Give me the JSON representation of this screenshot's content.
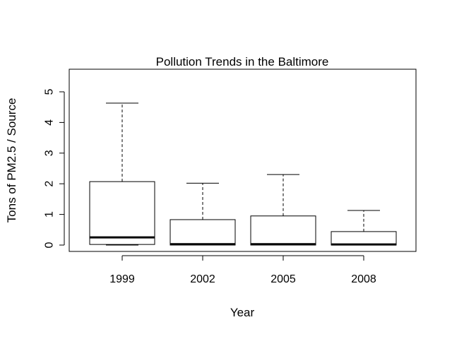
{
  "chart_data": {
    "type": "boxplot",
    "title": "Pollution Trends in the Baltimore",
    "xlabel": "Year",
    "ylabel": "Tons of PM2.5 / Source",
    "categories": [
      "1999",
      "2002",
      "2005",
      "2008"
    ],
    "boxes": [
      {
        "category": "1999",
        "whisker_low": 0.0,
        "q1": 0.02,
        "median": 0.25,
        "q3": 2.07,
        "whisker_high": 4.63
      },
      {
        "category": "2002",
        "whisker_low": 0.0,
        "q1": 0.0,
        "median": 0.03,
        "q3": 0.83,
        "whisker_high": 2.02
      },
      {
        "category": "2005",
        "whisker_low": 0.0,
        "q1": 0.0,
        "median": 0.03,
        "q3": 0.95,
        "whisker_high": 2.3
      },
      {
        "category": "2008",
        "whisker_low": 0.0,
        "q1": 0.0,
        "median": 0.02,
        "q3": 0.44,
        "whisker_high": 1.13
      }
    ],
    "yticks": [
      0,
      1,
      2,
      3,
      4,
      5
    ],
    "ylim": [
      -0.2,
      5.6
    ],
    "grid": false,
    "legend": "none"
  }
}
